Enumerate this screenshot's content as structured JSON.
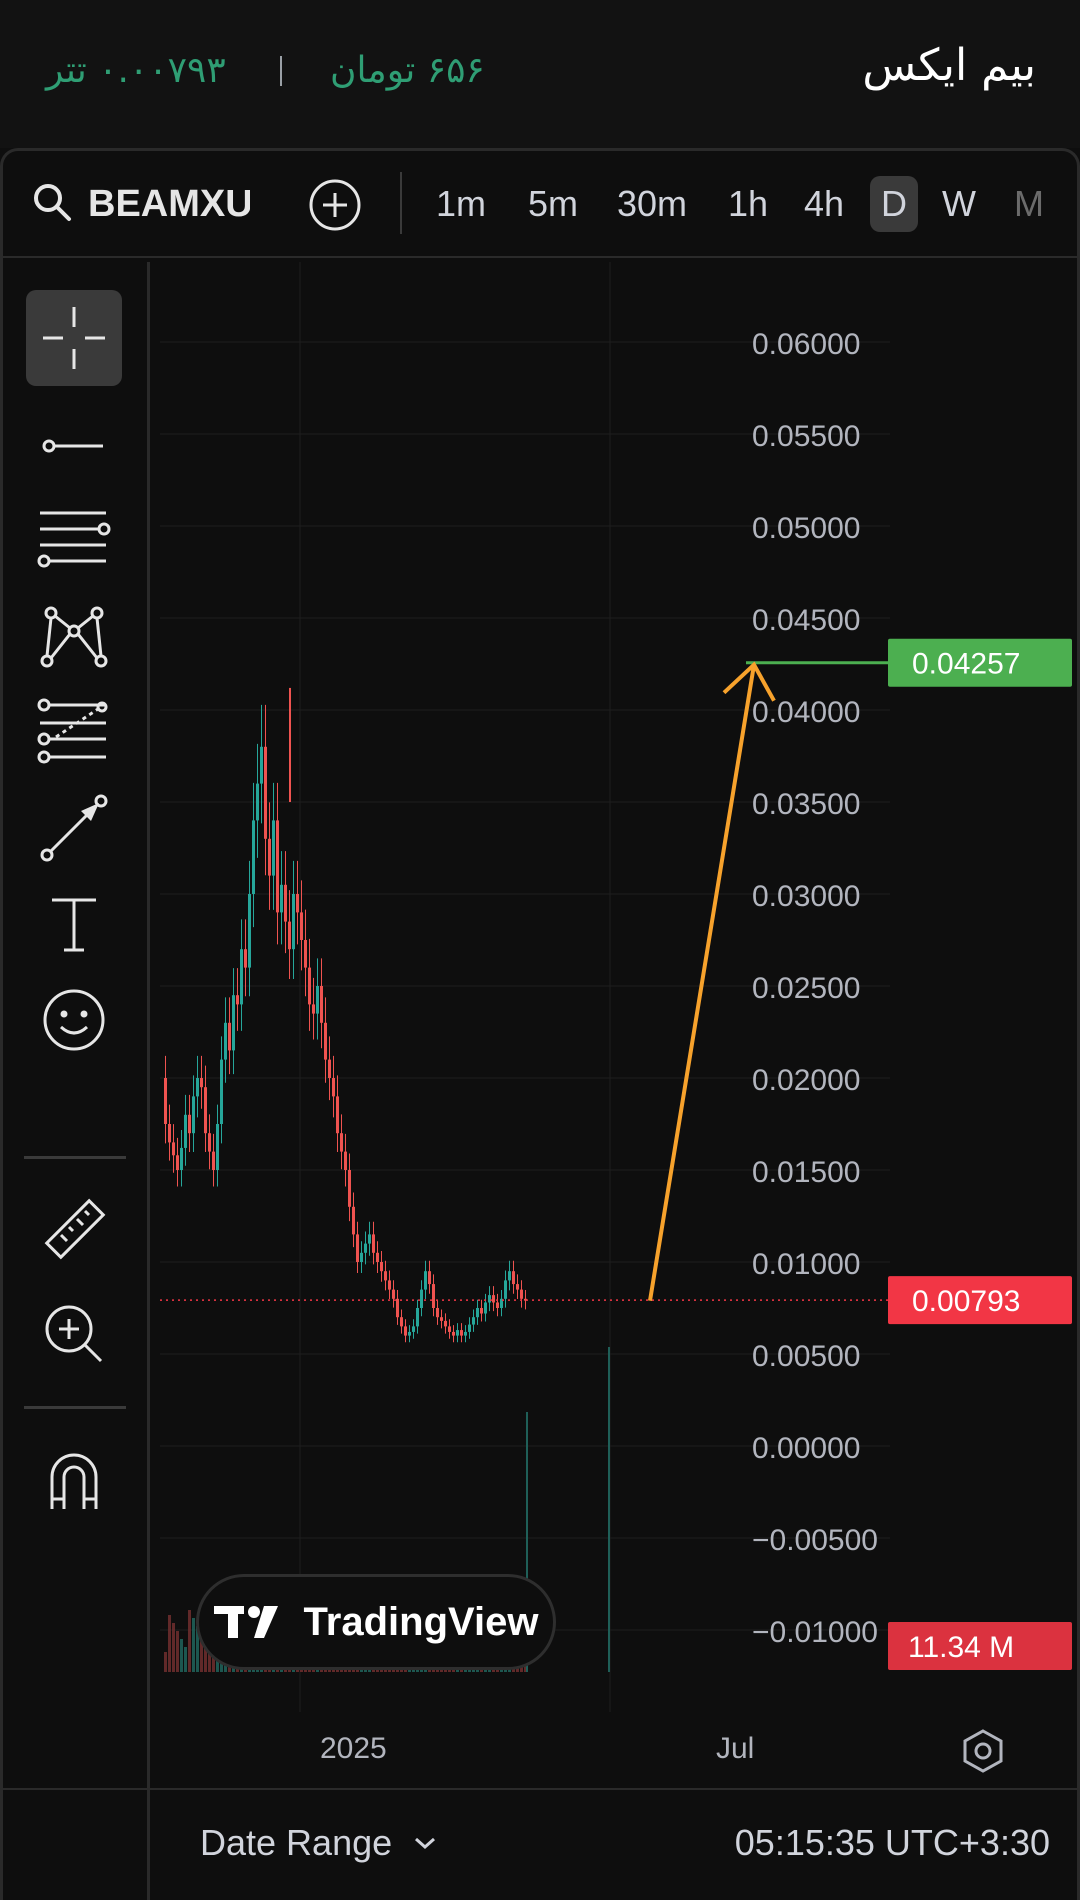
{
  "header": {
    "title": "بیم ایکس",
    "price_toman": "۶۵۶ تومان",
    "price_usdt": "۰.۰۰۷۹۳ تتر"
  },
  "toolbar": {
    "symbol": "BEAMXUSDT",
    "intervals": [
      "1m",
      "5m",
      "30m",
      "1h",
      "4h",
      "D",
      "W",
      "M"
    ],
    "active_interval": "D"
  },
  "sidebar": {
    "tools": [
      "crosshair-icon",
      "trend-line-icon",
      "fib-retracement-icon",
      "pattern-icon",
      "prediction-icon",
      "arrow-icon",
      "text-icon",
      "emoji-icon",
      "ruler-icon",
      "zoom-in-icon",
      "magnet-icon"
    ]
  },
  "chart_data": {
    "type": "candlestick",
    "y_ticks": [
      "0.06000",
      "0.05500",
      "0.05000",
      "0.04500",
      "0.04000",
      "0.03500",
      "0.03000",
      "0.02500",
      "0.02000",
      "0.01500",
      "0.01000",
      "0.00500",
      "0.00000",
      "−0.00500",
      "−0.01000"
    ],
    "ylim": [
      -0.0125,
      0.0645
    ],
    "x_ticks": [
      "2025",
      "Jul"
    ],
    "current_price": "0.00793",
    "target_price": "0.04257",
    "volume_label": "11.34 M",
    "colors": {
      "up": "#26a69a",
      "down": "#ef5350",
      "target": "#4caf50",
      "arrow": "#f7a22c",
      "current": "#f23645"
    },
    "watermark": "TradingView"
  },
  "bottom": {
    "date_range": "Date Range",
    "clock": "05:15:35 UTC+3:30"
  }
}
